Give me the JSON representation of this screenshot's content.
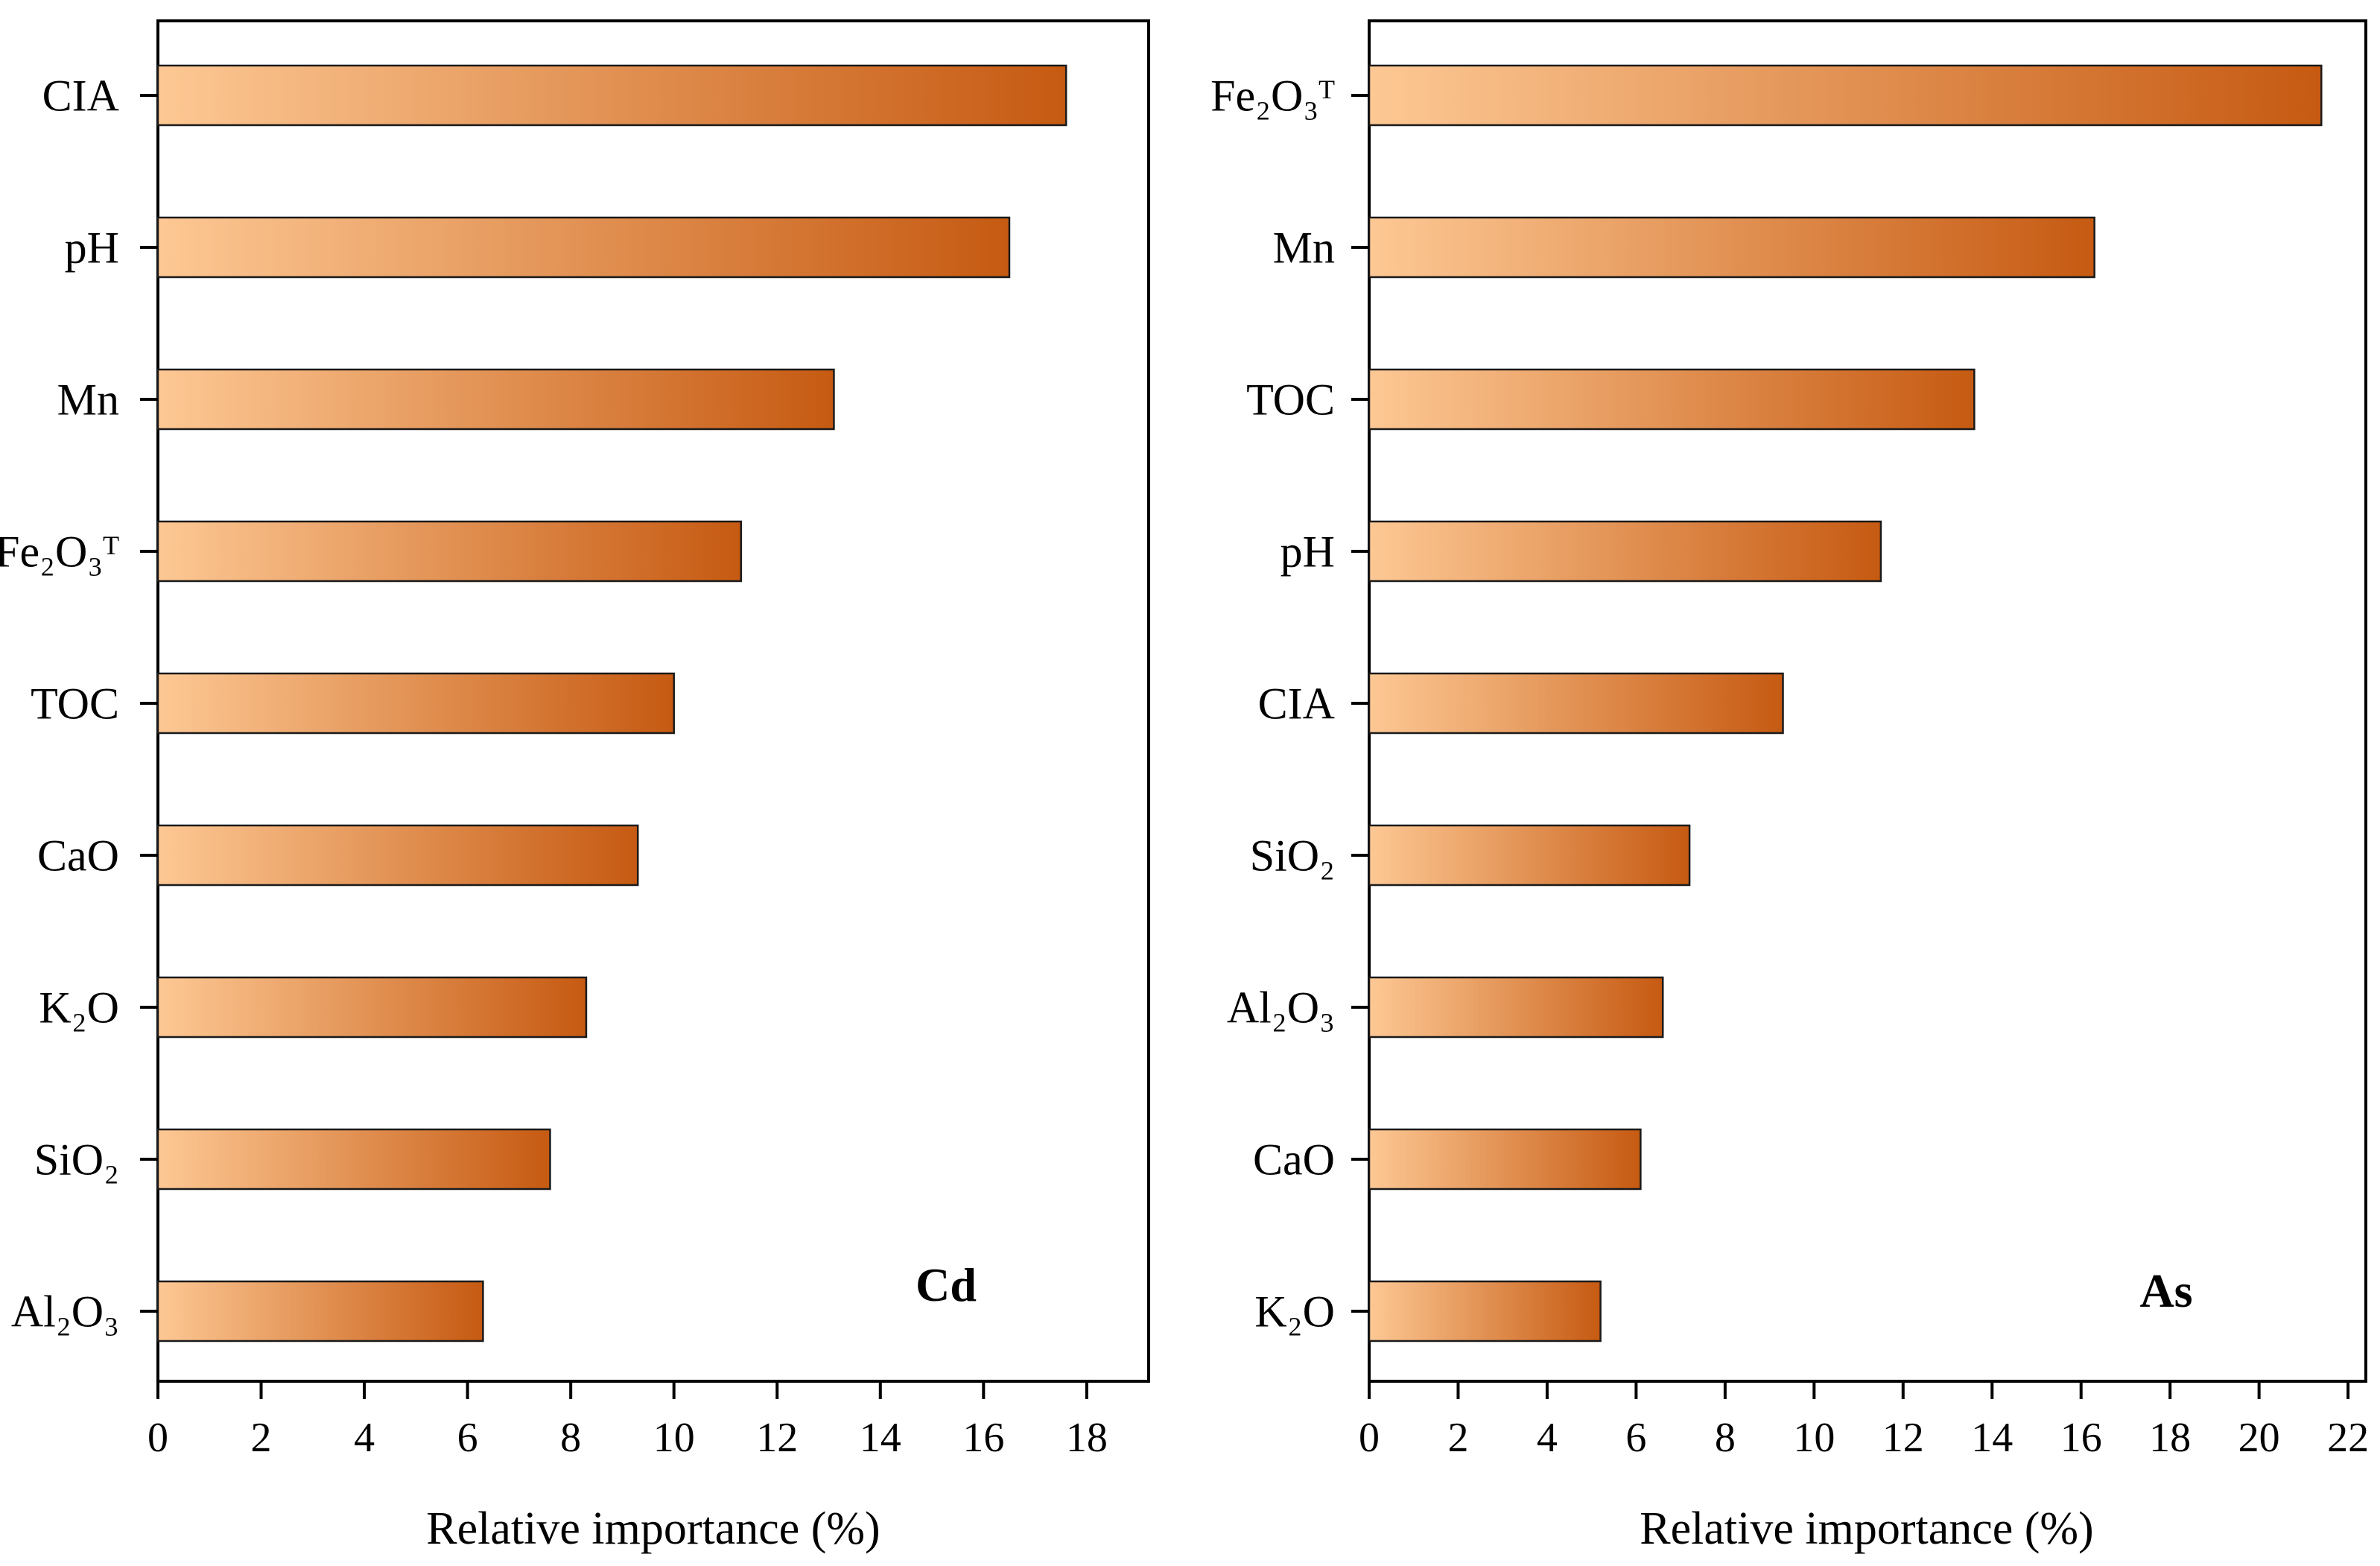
{
  "colors": {
    "bar_start": "#fdc894",
    "bar_end": "#c65a12",
    "bar_stroke": "#1a1a1a",
    "axis": "#000000"
  },
  "chart_data": [
    {
      "type": "bar",
      "orientation": "horizontal",
      "panel_label": "Cd",
      "xlabel": "Relative importance (%)",
      "xlim": [
        0,
        19.2
      ],
      "xticks": [
        0,
        2,
        4,
        6,
        8,
        10,
        12,
        14,
        16,
        18
      ],
      "xtick_labels": [
        "0",
        "2",
        "4",
        "6",
        "8",
        "10",
        "12",
        "14",
        "16",
        "18"
      ],
      "categories": [
        "CIA",
        "pH",
        "Mn",
        "Fe₂O₃ᵀ",
        "TOC",
        "CaO",
        "K₂O",
        "SiO₂",
        "Al₂O₃"
      ],
      "values": [
        17.6,
        16.5,
        13.1,
        11.3,
        10.0,
        9.3,
        8.3,
        7.6,
        6.3
      ]
    },
    {
      "type": "bar",
      "orientation": "horizontal",
      "panel_label": "As",
      "xlabel": "Relative importance (%)",
      "xlim": [
        0,
        22.4
      ],
      "xticks": [
        0,
        2,
        4,
        6,
        8,
        10,
        12,
        14,
        16,
        18,
        20,
        22
      ],
      "xtick_labels": [
        "0",
        "2",
        "4",
        "6",
        "8",
        "10",
        "12",
        "14",
        "16",
        "18",
        "20",
        "22"
      ],
      "categories": [
        "Fe₂O₃ᵀ",
        "Mn",
        "TOC",
        "pH",
        "CIA",
        "SiO₂",
        "Al₂O₃",
        "CaO",
        "K₂O"
      ],
      "values": [
        21.4,
        16.3,
        13.6,
        11.5,
        9.3,
        7.2,
        6.6,
        6.1,
        5.2
      ]
    }
  ]
}
